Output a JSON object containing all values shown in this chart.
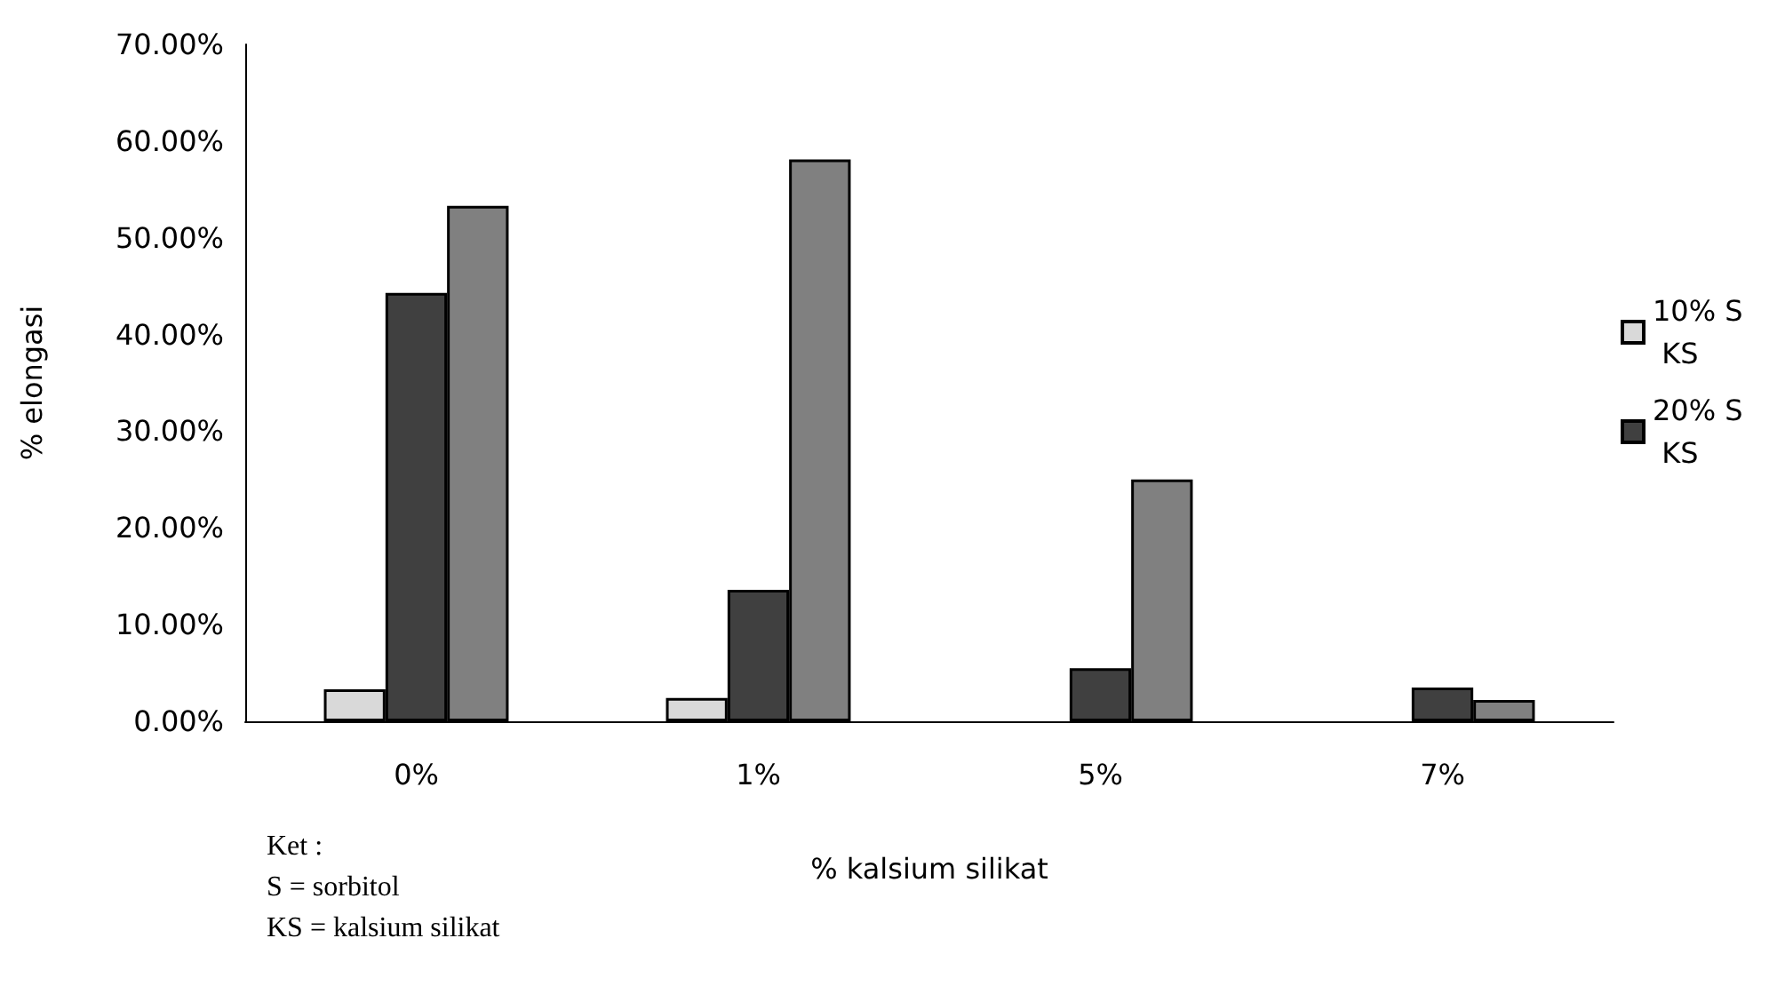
{
  "chart_data": {
    "type": "bar",
    "xlabel": "% kalsium silikat",
    "ylabel": "% elongasi",
    "categories": [
      "0%",
      "1%",
      "5%",
      "7%"
    ],
    "series": [
      {
        "name": "10% S KS",
        "color": "#d9d9d9",
        "values": [
          3.3,
          2.4,
          null,
          null
        ]
      },
      {
        "name": "20% S KS",
        "color": "#404040",
        "values": [
          44.3,
          13.6,
          5.5,
          3.5
        ]
      },
      {
        "color": "#808080",
        "values": [
          53.3,
          58.1,
          25.0,
          2.2
        ]
      }
    ],
    "ylim": [
      0,
      70
    ],
    "yticks": [
      {
        "value": 0,
        "label": "0.00%"
      },
      {
        "value": 10,
        "label": "10.00%"
      },
      {
        "value": 20,
        "label": "20.00%"
      },
      {
        "value": 30,
        "label": "30.00%"
      },
      {
        "value": 40,
        "label": "40.00%"
      },
      {
        "value": 50,
        "label": "50.00%"
      },
      {
        "value": 60,
        "label": "60.00%"
      },
      {
        "value": 70,
        "label": "70.00%"
      }
    ],
    "grid": false,
    "legend": "right",
    "annotations": [
      "Ket :",
      "S = sorbitol",
      "KS = kalsium silikat"
    ]
  }
}
